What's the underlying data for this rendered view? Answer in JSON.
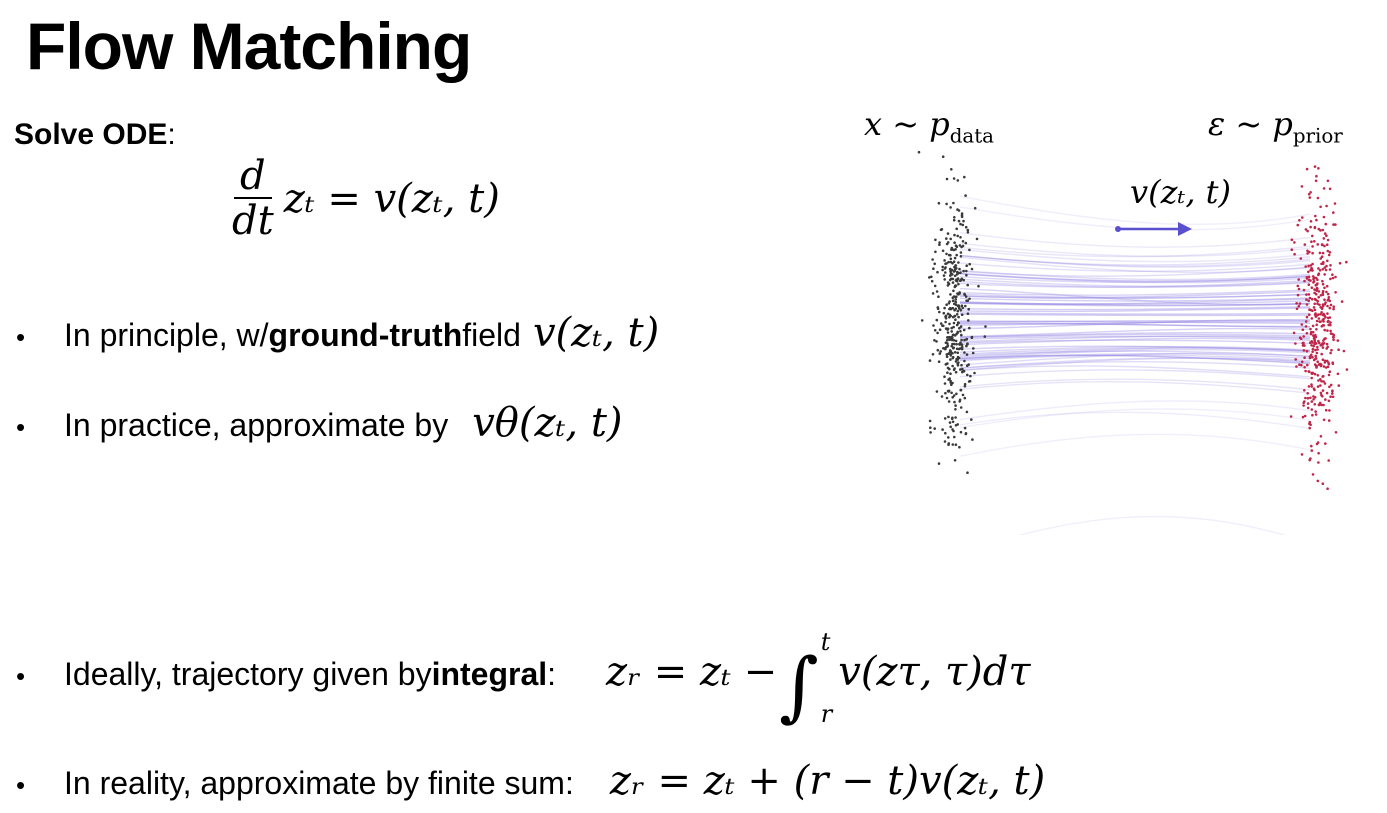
{
  "slide": {
    "title": "Flow Matching",
    "solve_label": "Solve ODE",
    "solve_colon": ":",
    "ode": {
      "num": "d",
      "den": "dt",
      "rhs": "zₜ = v(zₜ, t)"
    },
    "bullets": [
      {
        "pre": "In principle, w/ ",
        "bold": "ground-truth",
        "post": " field",
        "math": "v(zₜ, t)"
      },
      {
        "pre": "In practice, approximate by",
        "math": "vθ(zₜ, t)"
      },
      {
        "pre": "Ideally, trajectory given by ",
        "bold": "integral",
        "post": ":",
        "lhs": "zᵣ = zₜ −",
        "upper": "t",
        "lower": "r",
        "integrand": "v(zτ, τ)dτ"
      },
      {
        "pre": "In reality, approximate by finite sum:",
        "math": "zᵣ = zₜ + (r − t)v(zₜ, t)"
      }
    ]
  },
  "figure": {
    "left_label": "x ~ p",
    "left_sub": "data",
    "right_label": "ε ~ p",
    "right_sub": "prior",
    "field_label": "v(zₜ, t)",
    "colors": {
      "data_points": "#3a3a3a",
      "prior_points": "#c0264a",
      "flow_lines": "#8878e0",
      "arrow": "#5a4fcf"
    }
  }
}
